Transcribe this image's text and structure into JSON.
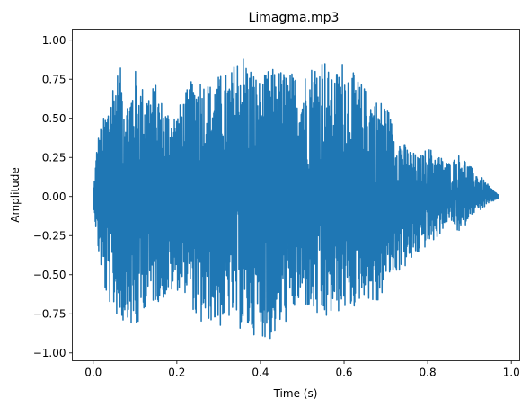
{
  "chart_data": {
    "type": "line",
    "title": "Limagma.mp3",
    "xlabel": "Time (s)",
    "ylabel": "Amplitude",
    "xlim": [
      -0.05,
      1.02
    ],
    "ylim": [
      -1.05,
      1.07
    ],
    "x_ticks": [
      0.0,
      0.2,
      0.4,
      0.6,
      0.8,
      1.0
    ],
    "x_tick_labels": [
      "0.0",
      "0.2",
      "0.4",
      "0.6",
      "0.8",
      "1.0"
    ],
    "y_ticks": [
      -1.0,
      -0.75,
      -0.5,
      -0.25,
      0.0,
      0.25,
      0.5,
      0.75,
      1.0
    ],
    "y_tick_labels": [
      "−1.00",
      "−0.75",
      "−0.50",
      "−0.25",
      "0.00",
      "0.25",
      "0.50",
      "0.75",
      "1.00"
    ],
    "grid": false,
    "line_color": "#1f77b4",
    "series": [
      {
        "envelope": {
          "t": [
            0.0,
            0.01,
            0.03,
            0.05,
            0.07,
            0.08,
            0.1,
            0.12,
            0.15,
            0.17,
            0.2,
            0.23,
            0.25,
            0.28,
            0.3,
            0.33,
            0.35,
            0.37,
            0.4,
            0.42,
            0.45,
            0.47,
            0.5,
            0.52,
            0.55,
            0.57,
            0.6,
            0.62,
            0.65,
            0.68,
            0.7,
            0.72,
            0.75,
            0.78,
            0.8,
            0.82,
            0.85,
            0.88,
            0.9,
            0.93,
            0.95,
            0.97
          ],
          "upper": [
            0.02,
            0.38,
            0.55,
            0.8,
            0.83,
            0.62,
            0.82,
            0.7,
            0.72,
            0.58,
            0.55,
            0.72,
            0.8,
            0.73,
            0.78,
            0.8,
            0.96,
            0.88,
            0.74,
            0.82,
            0.82,
            0.8,
            0.78,
            0.85,
            0.93,
            0.75,
            0.9,
            0.8,
            0.7,
            0.62,
            0.62,
            0.43,
            0.32,
            0.25,
            0.32,
            0.28,
            0.22,
            0.28,
            0.2,
            0.12,
            0.06,
            0.01
          ],
          "lower": [
            -0.02,
            -0.33,
            -0.65,
            -0.74,
            -0.83,
            -0.75,
            -0.93,
            -0.72,
            -0.68,
            -0.66,
            -0.6,
            -0.63,
            -0.85,
            -0.8,
            -0.85,
            -0.78,
            -0.85,
            -0.89,
            -0.88,
            -0.94,
            -0.85,
            -0.78,
            -0.68,
            -0.75,
            -0.83,
            -0.77,
            -0.73,
            -0.73,
            -0.63,
            -0.73,
            -0.55,
            -0.5,
            -0.45,
            -0.37,
            -0.31,
            -0.28,
            -0.15,
            -0.25,
            -0.12,
            -0.08,
            -0.04,
            -0.01
          ]
        }
      }
    ]
  }
}
